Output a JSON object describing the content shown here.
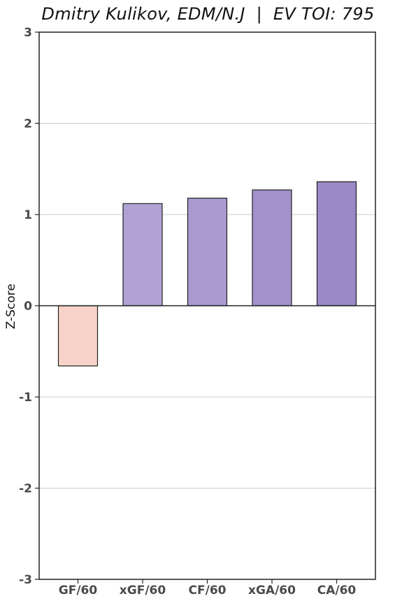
{
  "chart_data": {
    "type": "bar",
    "title": "Dmitry Kulikov, EDM/N.J  |  EV TOI: 795",
    "xlabel": "",
    "ylabel": "Z-Score",
    "categories": [
      "GF/60",
      "xGF/60",
      "CF/60",
      "xGA/60",
      "CA/60"
    ],
    "values": [
      -0.66,
      1.12,
      1.18,
      1.27,
      1.36
    ],
    "bar_colors": [
      "#f7d2c8",
      "#b1a2d4",
      "#aa99d0",
      "#a291cb",
      "#9b88c6"
    ],
    "ylim": [
      -3,
      3
    ],
    "yticks": [
      -3,
      -2,
      -1,
      0,
      1,
      2,
      3
    ],
    "ytick_labels": [
      "-3",
      "-2",
      "-1",
      "0",
      "1",
      "2",
      "3"
    ],
    "grid": "horizontal",
    "zero_line": true
  }
}
